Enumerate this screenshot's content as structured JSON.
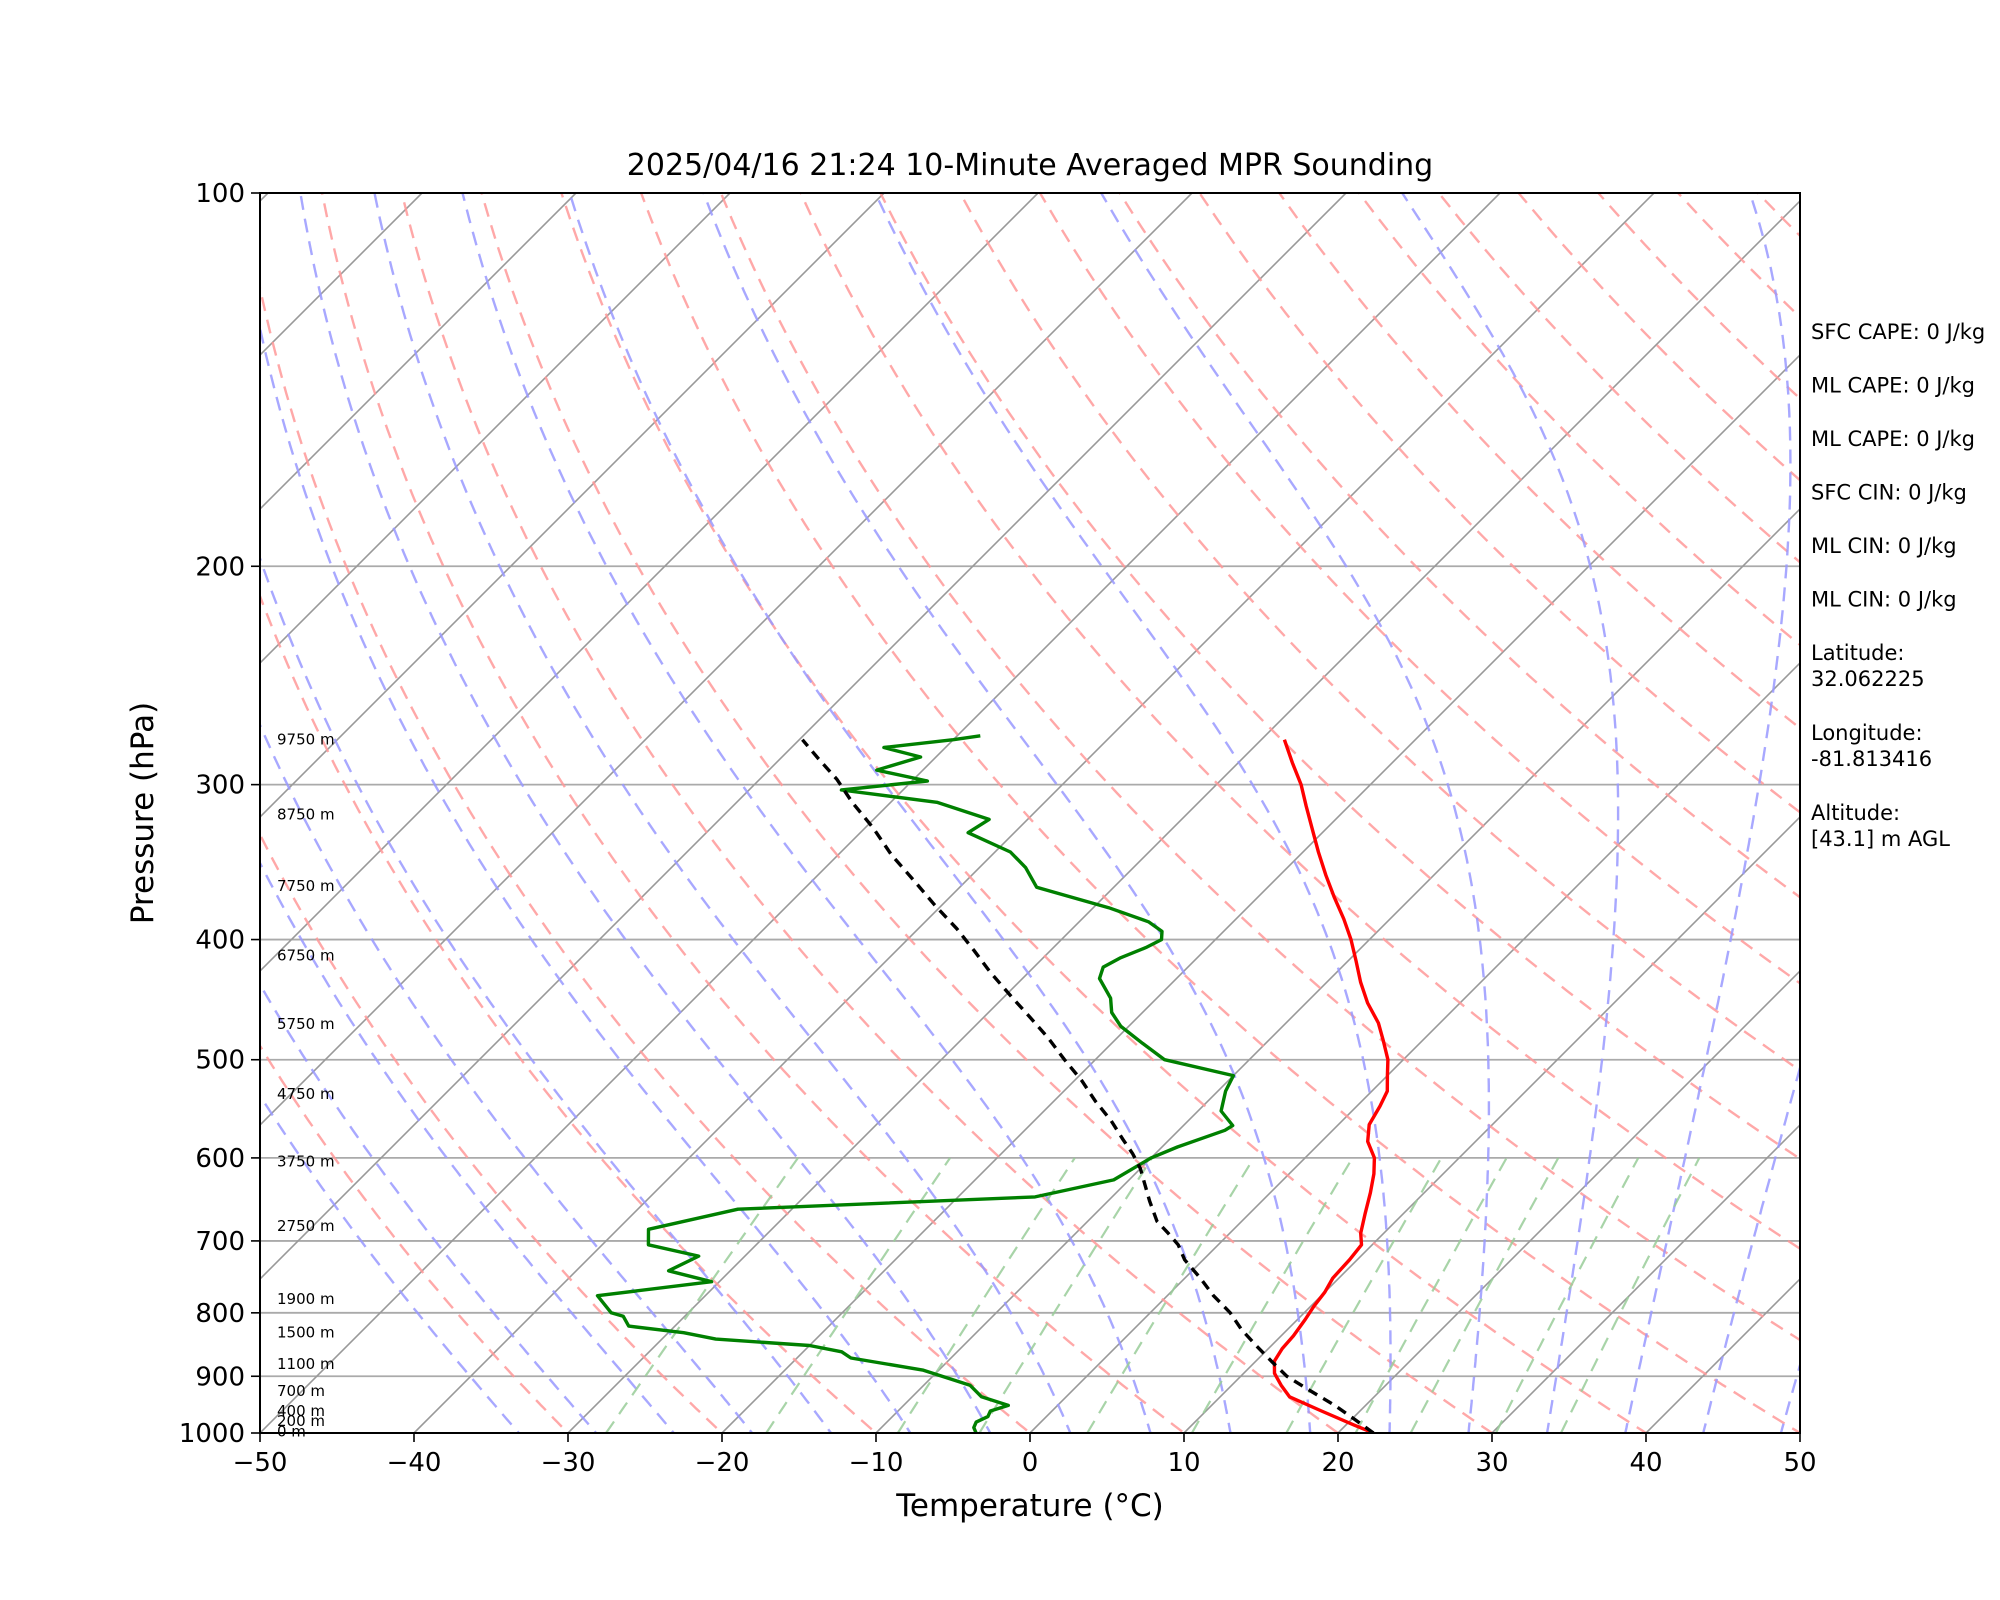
{
  "chart_data": {
    "type": "line",
    "subtype": "skew-t log-p sounding",
    "title": "2025/04/16 21:24 10-Minute Averaged MPR Sounding",
    "xlabel": "Temperature (°C)",
    "ylabel": "Pressure (hPa)",
    "xlim": [
      -50,
      50
    ],
    "ylim": [
      1000,
      100
    ],
    "y_scale": "log",
    "x_ticks": [
      "−50",
      "−40",
      "−30",
      "−20",
      "−10",
      "0",
      "10",
      "20",
      "30",
      "40",
      "50"
    ],
    "y_ticks": [
      100,
      200,
      300,
      400,
      500,
      600,
      700,
      800,
      900,
      1000
    ],
    "series": [
      {
        "role": "temperature",
        "color": "#ff0000",
        "points": [
          [
            22.3,
            1000
          ],
          [
            20.5,
            985
          ],
          [
            17.5,
            960
          ],
          [
            14.5,
            935
          ],
          [
            13.2,
            915
          ],
          [
            12.0,
            895
          ],
          [
            11.2,
            875
          ],
          [
            10.9,
            855
          ],
          [
            10.8,
            835
          ],
          [
            10.5,
            810
          ],
          [
            10.2,
            790
          ],
          [
            10.0,
            770
          ],
          [
            9.6,
            750
          ],
          [
            9.5,
            725
          ],
          [
            9.3,
            705
          ],
          [
            8.5,
            690
          ],
          [
            7.5,
            665
          ],
          [
            6.5,
            640
          ],
          [
            5.5,
            618
          ],
          [
            4.5,
            600
          ],
          [
            3.0,
            582
          ],
          [
            2.0,
            564
          ],
          [
            1.5,
            545
          ],
          [
            1.0,
            530
          ],
          [
            0.0,
            515
          ],
          [
            -1.0,
            500
          ],
          [
            -2.5,
            483
          ],
          [
            -4.0,
            467
          ],
          [
            -6.0,
            450
          ],
          [
            -7.8,
            433
          ],
          [
            -9.5,
            416
          ],
          [
            -11.2,
            400
          ],
          [
            -13.0,
            385
          ],
          [
            -15.0,
            370
          ],
          [
            -17.0,
            355
          ],
          [
            -19.0,
            340
          ],
          [
            -21.0,
            325
          ],
          [
            -22.8,
            312
          ],
          [
            -24.5,
            300
          ],
          [
            -26.5,
            288
          ],
          [
            -28.5,
            276
          ]
        ]
      },
      {
        "role": "dewpoint",
        "color": "#008000",
        "points": [
          [
            -3.5,
            1000
          ],
          [
            -4.0,
            990
          ],
          [
            -4.2,
            980
          ],
          [
            -3.8,
            970
          ],
          [
            -4.0,
            960
          ],
          [
            -3.2,
            950
          ],
          [
            -5.5,
            935
          ],
          [
            -7.0,
            915
          ],
          [
            -11.0,
            890
          ],
          [
            -16.5,
            870
          ],
          [
            -17.5,
            860
          ],
          [
            -20.0,
            850
          ],
          [
            -26.5,
            840
          ],
          [
            -29.0,
            830
          ],
          [
            -33.0,
            820
          ],
          [
            -34.0,
            805
          ],
          [
            -35.0,
            800
          ],
          [
            -37.0,
            775
          ],
          [
            -30.5,
            755
          ],
          [
            -34.0,
            740
          ],
          [
            -33.0,
            720
          ],
          [
            -37.0,
            705
          ],
          [
            -38.0,
            685
          ],
          [
            -33.5,
            660
          ],
          [
            -15.0,
            645
          ],
          [
            -11.0,
            625
          ],
          [
            -10.0,
            600
          ],
          [
            -9.0,
            588
          ],
          [
            -7.0,
            570
          ],
          [
            -6.8,
            565
          ],
          [
            -8.5,
            550
          ],
          [
            -9.5,
            530
          ],
          [
            -10.0,
            515
          ],
          [
            -15.5,
            500
          ],
          [
            -18.0,
            485
          ],
          [
            -20.5,
            470
          ],
          [
            -22.0,
            458
          ],
          [
            -23.0,
            446
          ],
          [
            -25.0,
            430
          ],
          [
            -25.5,
            421
          ],
          [
            -25.0,
            414
          ],
          [
            -24.0,
            406
          ],
          [
            -23.5,
            400
          ],
          [
            -24.0,
            394
          ],
          [
            -25.5,
            387
          ],
          [
            -29.0,
            377
          ],
          [
            -35.0,
            363
          ],
          [
            -37.0,
            350
          ],
          [
            -39.0,
            340
          ],
          [
            -43.0,
            328
          ],
          [
            -42.5,
            320
          ],
          [
            -47.0,
            310
          ],
          [
            -54.0,
            303
          ],
          [
            -49.0,
            298
          ],
          [
            -53.0,
            292
          ],
          [
            -51.0,
            285
          ],
          [
            -54.0,
            280
          ],
          [
            -50.0,
            276
          ],
          [
            -48.5,
            274
          ]
        ]
      },
      {
        "role": "parcel",
        "color": "#000000",
        "dashed": true,
        "points": [
          [
            22.3,
            1000
          ],
          [
            20.2,
            975
          ],
          [
            18.0,
            950
          ],
          [
            15.5,
            925
          ],
          [
            13.0,
            900
          ],
          [
            11.0,
            875
          ],
          [
            9.0,
            850
          ],
          [
            7.0,
            825
          ],
          [
            5.2,
            800
          ],
          [
            3.0,
            775
          ],
          [
            1.0,
            750
          ],
          [
            -1.2,
            725
          ],
          [
            -2.6,
            705
          ],
          [
            -4.0,
            690
          ],
          [
            -5.5,
            675
          ],
          [
            -7.3,
            650
          ],
          [
            -8.7,
            630
          ],
          [
            -10.0,
            612
          ],
          [
            -11.5,
            595
          ],
          [
            -13.0,
            580
          ],
          [
            -15.0,
            560
          ],
          [
            -17.3,
            540
          ],
          [
            -19.5,
            520
          ],
          [
            -22.0,
            500
          ],
          [
            -24.5,
            480
          ],
          [
            -27.0,
            462
          ],
          [
            -29.5,
            445
          ],
          [
            -32.5,
            425
          ],
          [
            -35.0,
            408
          ],
          [
            -37.5,
            392
          ],
          [
            -40.5,
            375
          ],
          [
            -43.5,
            358
          ],
          [
            -46.5,
            342
          ],
          [
            -49.5,
            325
          ],
          [
            -52.5,
            310
          ],
          [
            -55.0,
            297
          ],
          [
            -57.5,
            286
          ],
          [
            -59.8,
            276
          ]
        ]
      }
    ],
    "height_labels": [
      {
        "label": "9750 m",
        "p": 276
      },
      {
        "label": "8750 m",
        "p": 317
      },
      {
        "label": "7750 m",
        "p": 362
      },
      {
        "label": "6750 m",
        "p": 412
      },
      {
        "label": "5750 m",
        "p": 468
      },
      {
        "label": "4750 m",
        "p": 533
      },
      {
        "label": "3750 m",
        "p": 604
      },
      {
        "label": "2750 m",
        "p": 681
      },
      {
        "label": "1900 m",
        "p": 780
      },
      {
        "label": "1500 m",
        "p": 830
      },
      {
        "label": "1100 m",
        "p": 880
      },
      {
        "label": "700 m",
        "p": 925
      },
      {
        "label": "400 m",
        "p": 960
      },
      {
        "label": "200 m",
        "p": 978
      },
      {
        "label": "0 m",
        "p": 997
      }
    ],
    "background_lines": {
      "isobar_color": "#aaaaaa",
      "isotherm_color": "#999999",
      "dry_adiabat_color": "#ff9999",
      "moist_adiabat_color": "#9999ff",
      "mixing_ratio_color": "#99cc99"
    }
  },
  "info_panel": [
    {
      "lines": [
        "SFC CAPE: 0 J/kg"
      ]
    },
    {
      "lines": [
        "ML CAPE: 0 J/kg"
      ]
    },
    {
      "lines": [
        "ML CAPE: 0 J/kg"
      ]
    },
    {
      "lines": [
        "SFC CIN: 0 J/kg"
      ]
    },
    {
      "lines": [
        "ML CIN: 0 J/kg"
      ]
    },
    {
      "lines": [
        "ML CIN: 0 J/kg"
      ]
    },
    {
      "lines": [
        "Latitude:",
        "32.062225"
      ]
    },
    {
      "lines": [
        "Longitude:",
        "-81.813416"
      ]
    },
    {
      "lines": [
        "Altitude:",
        "[43.1] m AGL"
      ]
    }
  ]
}
